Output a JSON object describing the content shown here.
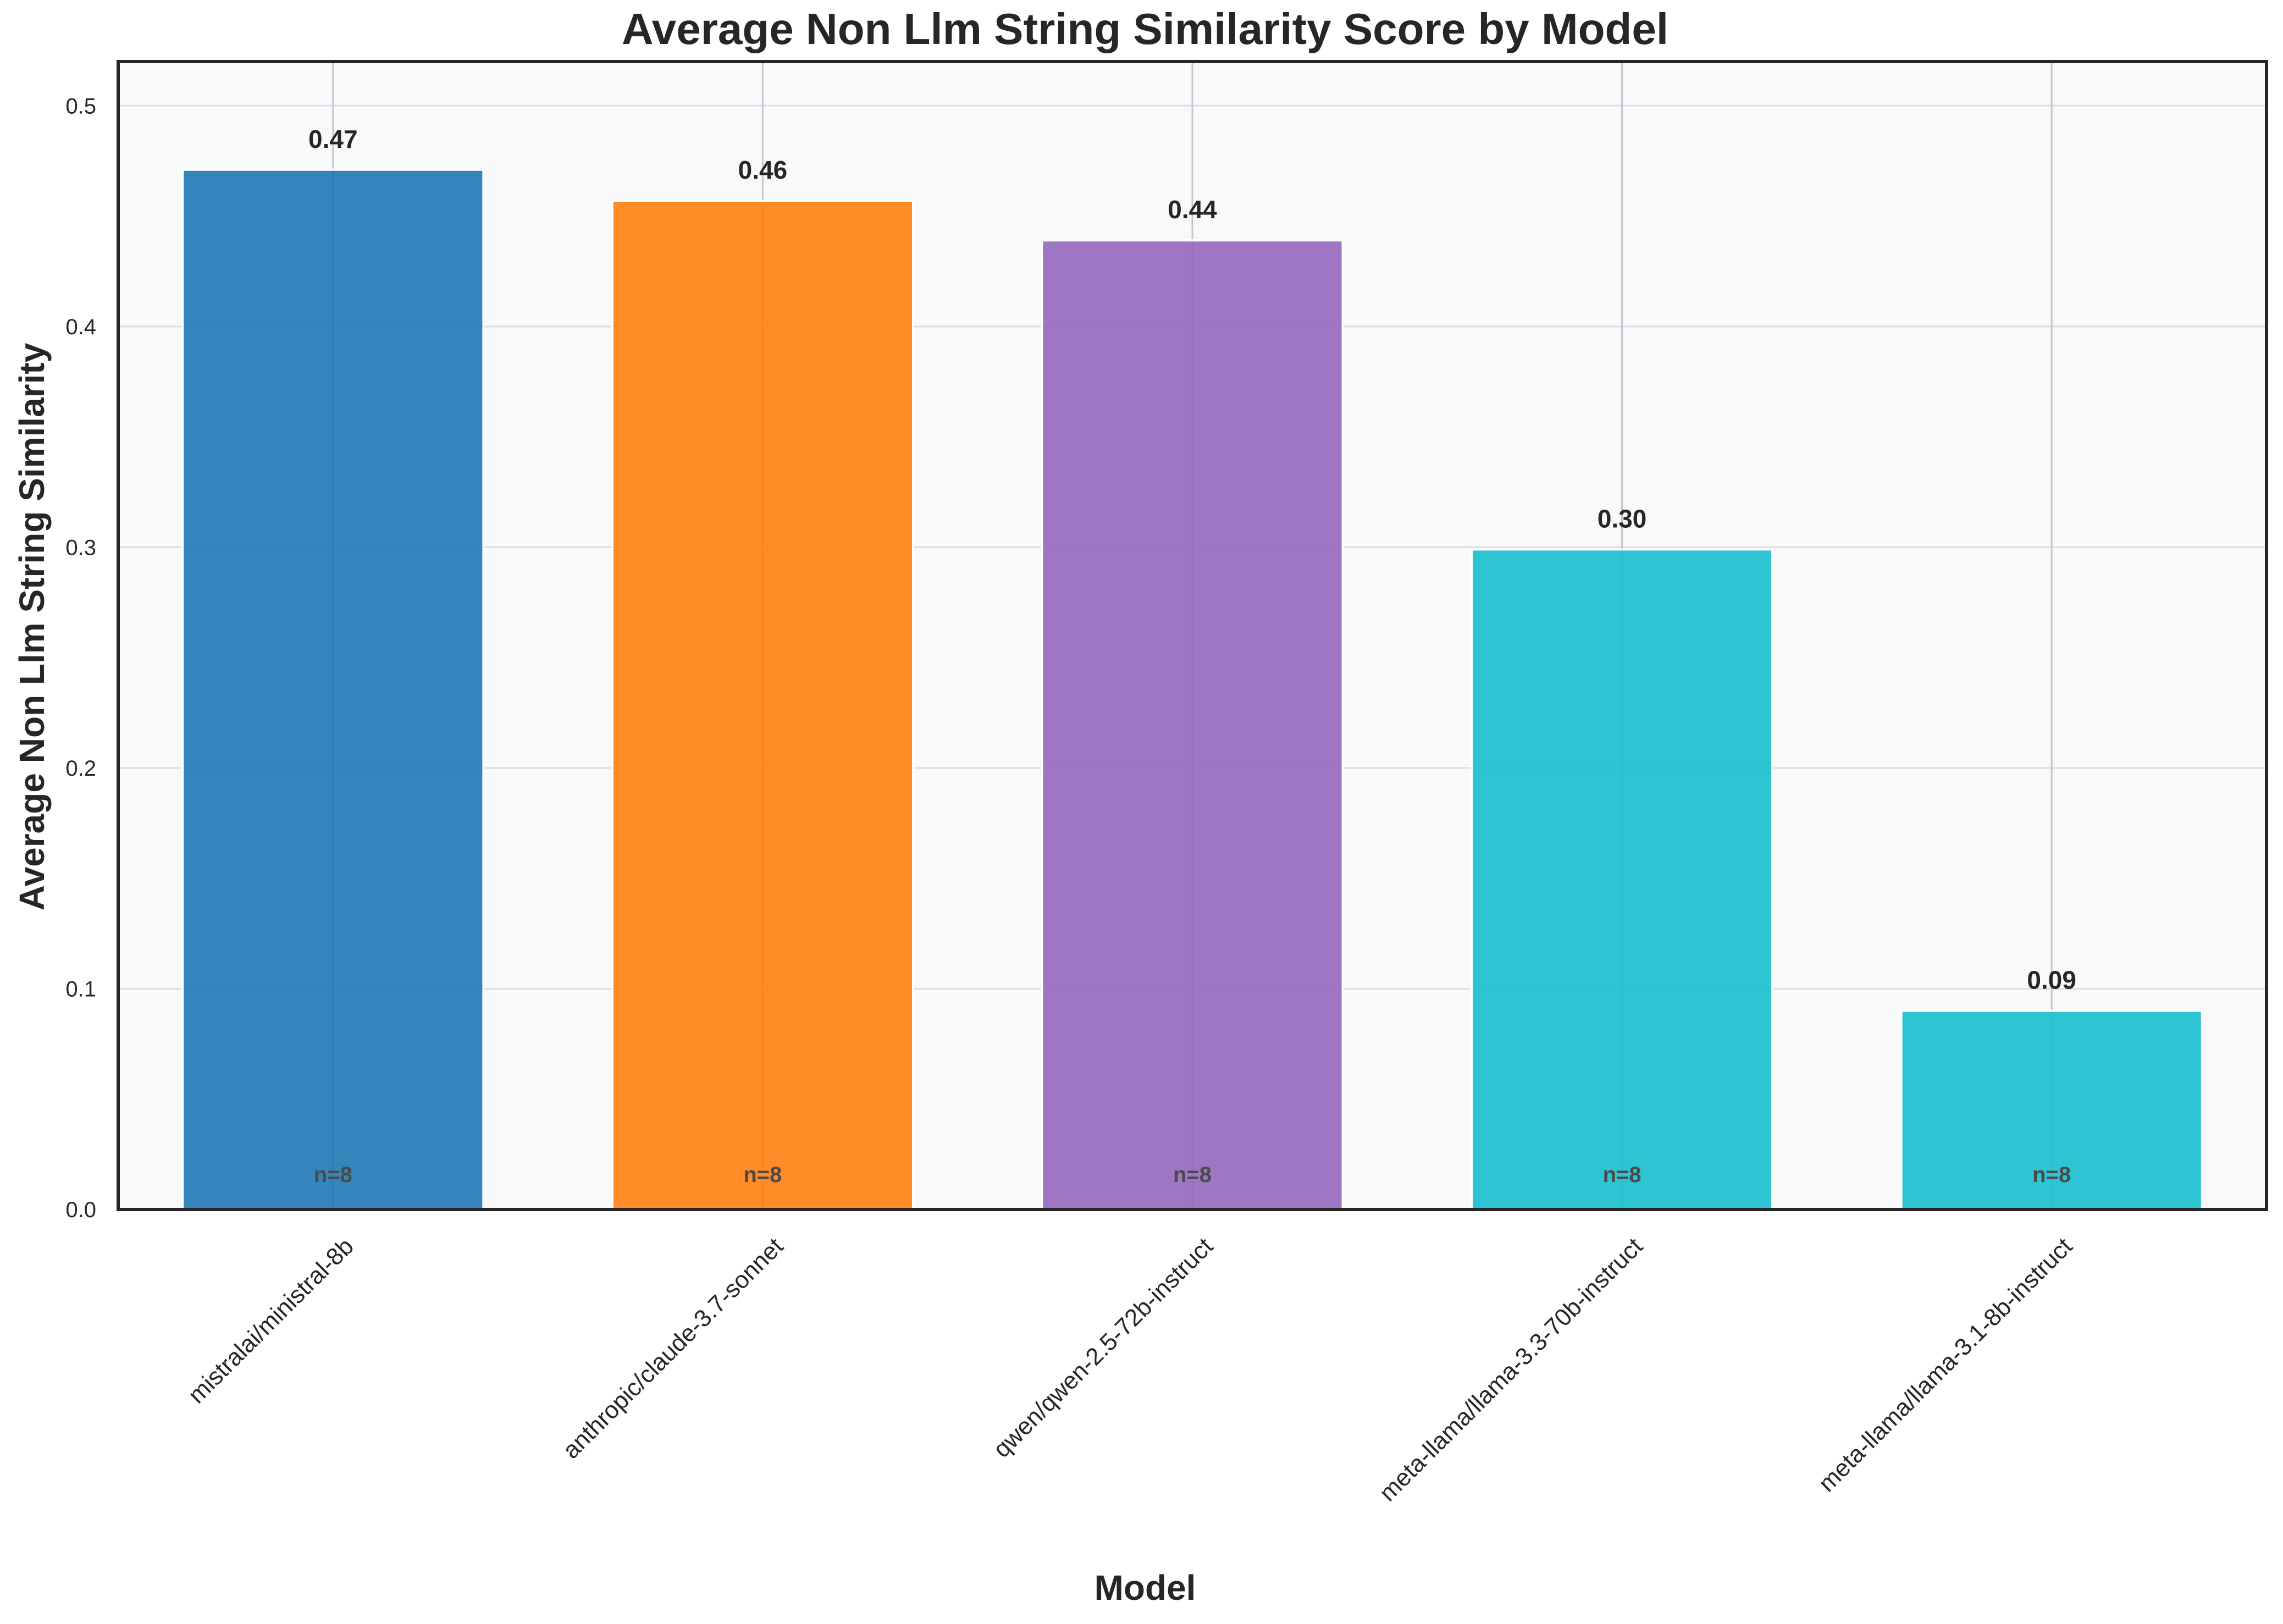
{
  "chart_data": {
    "type": "bar",
    "title": "Average Non Llm String Similarity Score by Model",
    "xlabel": "Model",
    "ylabel": "Average Non Llm String Similarity",
    "categories": [
      "mistralai/ministral-8b",
      "anthropic/claude-3.7-sonnet",
      "qwen/qwen-2.5-72b-instruct",
      "meta-llama/llama-3.3-70b-instruct",
      "meta-llama/llama-3.1-8b-instruct"
    ],
    "values": [
      0.471,
      0.457,
      0.439,
      0.299,
      0.09
    ],
    "value_labels": [
      "0.47",
      "0.46",
      "0.44",
      "0.30",
      "0.09"
    ],
    "count_labels": [
      "n=8",
      "n=8",
      "n=8",
      "n=8",
      "n=8"
    ],
    "colors": [
      "#1f77b4",
      "#ff7f0e",
      "#9467bd",
      "#17becf",
      "#17becf"
    ],
    "ylim": [
      0,
      0.52
    ],
    "yticks": [
      0.0,
      0.1,
      0.2,
      0.3,
      0.4,
      0.5
    ],
    "ytick_labels": [
      "0.0",
      "0.1",
      "0.2",
      "0.3",
      "0.4",
      "0.5"
    ],
    "grid": true,
    "legend": "none",
    "plot_background": "#f8f9fb"
  }
}
